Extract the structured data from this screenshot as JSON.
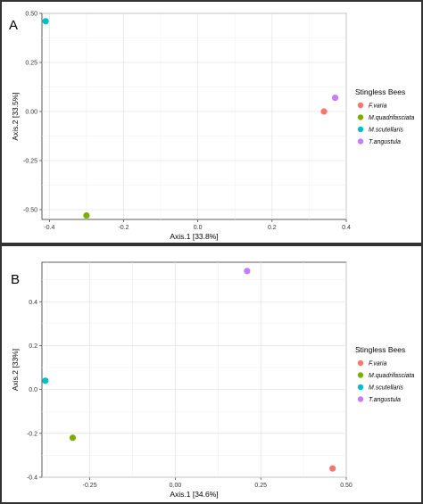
{
  "chart_data": [
    {
      "panel_label": "A",
      "type": "scatter",
      "xlabel": "Axis.1   [33.8%]",
      "ylabel": "Axis.2   [33.5%]",
      "xlim": [
        -0.42,
        0.4
      ],
      "ylim": [
        -0.55,
        0.5
      ],
      "xticks": [
        "-0.4",
        "-0.2",
        "0.0",
        "0.2",
        "0.4"
      ],
      "xtick_values": [
        -0.4,
        -0.2,
        0.0,
        0.2,
        0.4
      ],
      "yticks": [
        "0.50",
        "0.25",
        "0.00",
        "-0.25",
        "-0.50"
      ],
      "ytick_values": [
        0.5,
        0.25,
        0.0,
        -0.25,
        -0.5
      ],
      "grid": true,
      "legend_title": "Stingless Bees",
      "legend_position": "right",
      "series": [
        {
          "name": "F.varia",
          "color": "#F8766D",
          "x": 0.34,
          "y": 0.0
        },
        {
          "name": "M.quadrifasciata",
          "color": "#7CAE00",
          "x": -0.3,
          "y": -0.53
        },
        {
          "name": "M.scutellaris",
          "color": "#00BFC4",
          "x": -0.41,
          "y": 0.46
        },
        {
          "name": "T.angustula",
          "color": "#C77CFF",
          "x": 0.37,
          "y": 0.07
        }
      ]
    },
    {
      "panel_label": "B",
      "type": "scatter",
      "xlabel": "Axis.1   [34.6%]",
      "ylabel": "Axis.2   [33%]",
      "xlim": [
        -0.39,
        0.5
      ],
      "ylim": [
        -0.4,
        0.58
      ],
      "xticks": [
        "-0.25",
        "0.00",
        "0.25",
        "0.50"
      ],
      "xtick_values": [
        -0.25,
        0.0,
        0.25,
        0.5
      ],
      "yticks": [
        "0.4",
        "0.2",
        "0.0",
        "-0.2",
        "-0.4"
      ],
      "ytick_values": [
        0.4,
        0.2,
        0.0,
        -0.2,
        -0.4
      ],
      "grid": true,
      "legend_title": "Stingless Bees",
      "legend_position": "right",
      "series": [
        {
          "name": "F.varia",
          "color": "#F8766D",
          "x": 0.46,
          "y": -0.36
        },
        {
          "name": "M.quadrifasciata",
          "color": "#7CAE00",
          "x": -0.3,
          "y": -0.22
        },
        {
          "name": "M.scutellaris",
          "color": "#00BFC4",
          "x": -0.38,
          "y": 0.04
        },
        {
          "name": "T.angustula",
          "color": "#C77CFF",
          "x": 0.21,
          "y": 0.54
        }
      ]
    }
  ]
}
